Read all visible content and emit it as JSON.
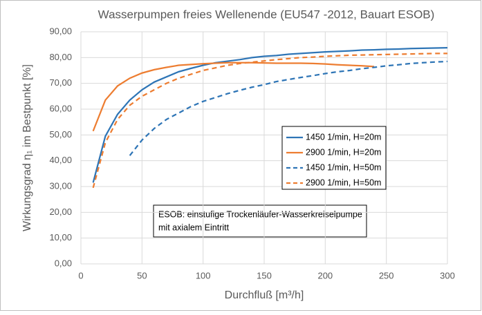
{
  "chart_data": {
    "type": "line",
    "title": "Wasserpumpen freies Wellenende (EU547 -2012, Bauart ESOB)",
    "x_label": "Durchfluß [m³/h]",
    "y_label": "Wirkungsgrad   η₁   im Bestpunkt [%]",
    "annotation": [
      "ESOB: einstufige Trockenläufer-Wasserkreiselpumpe",
      "mit axialem  Eintritt"
    ],
    "x": [
      10,
      20,
      30,
      40,
      50,
      60,
      70,
      80,
      90,
      100,
      110,
      120,
      130,
      140,
      150,
      160,
      170,
      180,
      190,
      200,
      210,
      220,
      230,
      240,
      250,
      260,
      270,
      280,
      290,
      300
    ],
    "series": [
      {
        "name": "1450 1/min, H=20m",
        "color": "#2e75b6",
        "dashed": false,
        "values": [
          31.5,
          49.5,
          58,
          63.5,
          67.5,
          70.5,
          72.5,
          74.5,
          75.8,
          77,
          78,
          78.6,
          79.2,
          80,
          80.5,
          80.8,
          81.3,
          81.6,
          81.9,
          82.2,
          82.4,
          82.6,
          82.9,
          83,
          83.2,
          83.3,
          83.5,
          83.6,
          83.7,
          83.8
        ]
      },
      {
        "name": "2900 1/min, H=20m",
        "color": "#ed7d31",
        "dashed": false,
        "values": [
          51.5,
          63.5,
          69,
          72,
          74,
          75.3,
          76.2,
          77,
          77.3,
          77.6,
          77.8,
          78,
          78,
          78,
          77.9,
          77.8,
          77.8,
          77.8,
          77.7,
          77.5,
          77.2,
          77,
          76.8,
          76.5,
          null,
          null,
          null,
          null,
          null,
          null
        ]
      },
      {
        "name": "1450 1/min, H=50m",
        "color": "#2e75b6",
        "dashed": true,
        "values": [
          null,
          null,
          null,
          42,
          48,
          52.5,
          56,
          58.5,
          61,
          63,
          64.5,
          66,
          67.3,
          68.5,
          69.5,
          70.7,
          71.5,
          72.3,
          73,
          73.8,
          74.5,
          75,
          75.7,
          76.2,
          76.8,
          77.2,
          77.7,
          78,
          78.3,
          78.5
        ]
      },
      {
        "name": "2900 1/min, H=50m",
        "color": "#ed7d31",
        "dashed": true,
        "values": [
          29.5,
          47,
          56,
          61.5,
          65,
          67.5,
          70,
          72,
          73.5,
          75,
          76,
          77,
          77.7,
          78.2,
          78.7,
          79.2,
          79.6,
          80,
          80.2,
          80.5,
          80.7,
          80.9,
          81,
          81.1,
          81.2,
          81.3,
          81.4,
          81.5,
          81.6,
          81.6
        ]
      }
    ],
    "xlim": [
      0,
      300
    ],
    "xticks": [
      0,
      50,
      100,
      150,
      200,
      250,
      300
    ],
    "ylim": [
      0,
      90
    ],
    "yticks": [
      {
        "value": 0,
        "label": "0,00"
      },
      {
        "value": 10,
        "label": "10,00"
      },
      {
        "value": 20,
        "label": "20,00"
      },
      {
        "value": 30,
        "label": "30,00"
      },
      {
        "value": 40,
        "label": "40,00"
      },
      {
        "value": 50,
        "label": "50,00"
      },
      {
        "value": 60,
        "label": "60,00"
      },
      {
        "value": 70,
        "label": "70,00"
      },
      {
        "value": 80,
        "label": "80,00"
      },
      {
        "value": 90,
        "label": "90,00"
      }
    ],
    "grid": true
  }
}
